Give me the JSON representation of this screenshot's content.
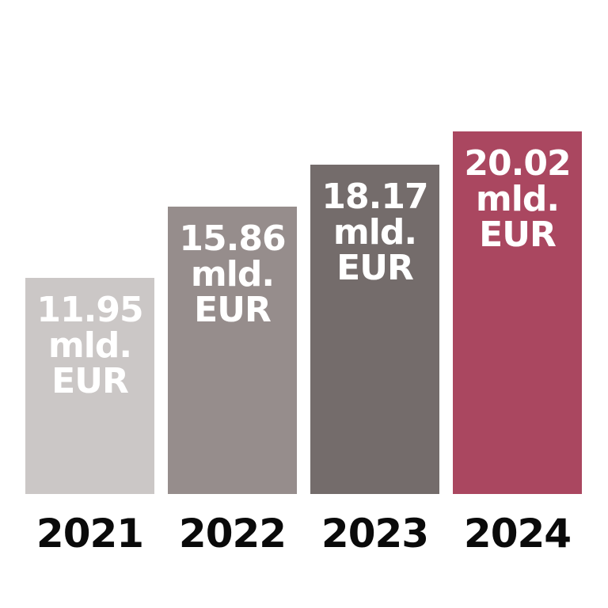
{
  "background_color": "#ffffff",
  "chart_data": {
    "type": "bar",
    "title": "",
    "unit": "mld. EUR",
    "categories": [
      "2021",
      "2022",
      "2023",
      "2024"
    ],
    "values": [
      11.95,
      15.86,
      18.17,
      20.02
    ],
    "ylim": [
      0,
      20.02
    ],
    "grid": false,
    "legend": false,
    "value_label_position": "inside-top",
    "axis_label_position": "below-bar",
    "value_text_color": "#ffffff",
    "axis_text_color": "#0a0a0a",
    "bars": [
      {
        "year": "2021",
        "value": 11.95,
        "label_lines": [
          "11.95",
          "mld.",
          "EUR"
        ],
        "color": "#cbc7c6"
      },
      {
        "year": "2022",
        "value": 15.86,
        "label_lines": [
          "15.86",
          "mld.",
          "EUR"
        ],
        "color": "#968d8c"
      },
      {
        "year": "2023",
        "value": 18.17,
        "label_lines": [
          "18.17",
          "mld.",
          "EUR"
        ],
        "color": "#746c6b"
      },
      {
        "year": "2024",
        "value": 20.02,
        "label_lines": [
          "20.02",
          "mld.",
          "EUR"
        ],
        "color": "#aa4760"
      }
    ]
  }
}
